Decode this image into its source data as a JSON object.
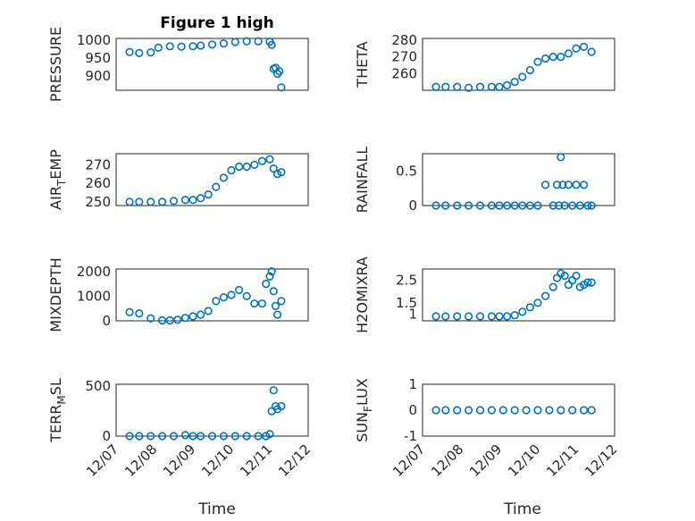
{
  "figure": {
    "title": "Figure 1 high"
  },
  "chart_data": [
    {
      "type": "scatter",
      "title": "Figure 1 high",
      "ylabel": "PRESSURE",
      "ylabel_sub": "",
      "ylabel_tail": "",
      "ylim": [
        860,
        1005
      ],
      "yticks": [
        900,
        950,
        1000
      ],
      "x": [
        7.35,
        7.6,
        7.9,
        8.1,
        8.4,
        8.7,
        9.0,
        9.2,
        9.5,
        9.8,
        10.1,
        10.4,
        10.7,
        11.0,
        11.05,
        11.1,
        11.15,
        11.2,
        11.25,
        11.3
      ],
      "y": [
        967,
        964,
        966,
        979,
        983,
        982,
        983,
        985,
        988,
        991,
        995,
        997,
        997,
        996,
        987,
        920,
        923,
        906,
        913,
        868
      ]
    },
    {
      "type": "scatter",
      "title": "",
      "ylabel": "THETA",
      "ylabel_sub": "",
      "ylabel_tail": "",
      "ylim": [
        250,
        281
      ],
      "yticks": [
        260,
        270,
        280
      ],
      "x": [
        7.35,
        7.6,
        7.9,
        8.2,
        8.5,
        8.8,
        9.0,
        9.2,
        9.4,
        9.6,
        9.8,
        10.0,
        10.2,
        10.4,
        10.6,
        10.8,
        11.0,
        11.2,
        11.4
      ],
      "y": [
        252,
        252,
        252,
        251.5,
        252,
        252,
        252,
        253,
        255,
        258,
        262,
        267,
        269,
        270,
        270,
        272,
        275,
        276,
        273
      ]
    },
    {
      "type": "scatter",
      "title": "",
      "ylabel": "AIR",
      "ylabel_sub": "T",
      "ylabel_tail": "EMP",
      "ylim": [
        248,
        276
      ],
      "yticks": [
        250,
        260,
        270
      ],
      "x": [
        7.35,
        7.6,
        7.9,
        8.2,
        8.5,
        8.8,
        9.0,
        9.2,
        9.4,
        9.6,
        9.8,
        10.0,
        10.2,
        10.4,
        10.6,
        10.8,
        11.0,
        11.1,
        11.2,
        11.3
      ],
      "y": [
        250,
        250,
        250,
        250,
        250.5,
        251,
        251,
        252,
        254,
        258,
        263,
        267,
        269,
        269,
        270,
        272,
        273,
        268,
        265,
        266
      ]
    },
    {
      "type": "scatter",
      "title": "",
      "ylabel": "RAINFALL",
      "ylabel_sub": "",
      "ylabel_tail": "",
      "ylim": [
        0,
        0.75
      ],
      "yticks": [
        0,
        0.5
      ],
      "x": [
        7.35,
        7.6,
        7.9,
        8.2,
        8.5,
        8.8,
        9.0,
        9.2,
        9.4,
        9.6,
        9.8,
        10.0,
        10.2,
        10.4,
        10.5,
        10.55,
        10.6,
        10.65,
        10.7,
        10.8,
        10.9,
        11.0,
        11.1,
        11.2,
        11.3,
        11.4
      ],
      "y": [
        0,
        0,
        0,
        0,
        0,
        0,
        0,
        0,
        0,
        0,
        0,
        0,
        0.3,
        0,
        0.3,
        0,
        0.7,
        0.3,
        0,
        0.3,
        0,
        0.3,
        0,
        0.3,
        0,
        0
      ]
    },
    {
      "type": "scatter",
      "title": "",
      "ylabel": "MIXDEPTH",
      "ylabel_sub": "",
      "ylabel_tail": "",
      "ylim": [
        0,
        2100
      ],
      "yticks": [
        0,
        1000,
        2000
      ],
      "x": [
        7.35,
        7.6,
        7.9,
        8.2,
        8.4,
        8.6,
        8.8,
        9.0,
        9.2,
        9.4,
        9.6,
        9.8,
        10.0,
        10.2,
        10.4,
        10.6,
        10.8,
        10.9,
        11.0,
        11.05,
        11.1,
        11.15,
        11.2,
        11.3
      ],
      "y": [
        350,
        300,
        100,
        20,
        20,
        40,
        120,
        180,
        250,
        400,
        800,
        950,
        1050,
        1250,
        1000,
        700,
        700,
        1500,
        1800,
        2000,
        1200,
        600,
        250,
        800
      ]
    },
    {
      "type": "scatter",
      "title": "",
      "ylabel": "H2OMIXRA",
      "ylabel_sub": "",
      "ylabel_tail": "",
      "ylim": [
        0.7,
        3.0
      ],
      "yticks": [
        1,
        1.5,
        2.5
      ],
      "x": [
        7.35,
        7.6,
        7.9,
        8.2,
        8.5,
        8.8,
        9.0,
        9.2,
        9.4,
        9.6,
        9.8,
        10.0,
        10.2,
        10.4,
        10.5,
        10.6,
        10.7,
        10.8,
        10.9,
        11.0,
        11.1,
        11.2,
        11.3,
        11.4
      ],
      "y": [
        0.9,
        0.9,
        0.9,
        0.9,
        0.9,
        0.9,
        0.9,
        0.9,
        0.95,
        1.1,
        1.3,
        1.5,
        1.8,
        2.2,
        2.6,
        2.8,
        2.7,
        2.3,
        2.5,
        2.7,
        2.2,
        2.3,
        2.4,
        2.4
      ]
    },
    {
      "type": "scatter",
      "title": "",
      "ylabel": "TERR",
      "ylabel_sub": "M",
      "ylabel_tail": "SL",
      "ylim": [
        0,
        520
      ],
      "yticks": [
        0,
        500
      ],
      "x": [
        7.35,
        7.6,
        7.9,
        8.2,
        8.5,
        8.8,
        9.0,
        9.2,
        9.5,
        9.8,
        10.1,
        10.4,
        10.7,
        10.9,
        11.0,
        11.05,
        11.1,
        11.15,
        11.2,
        11.3
      ],
      "y": [
        0,
        0,
        0,
        0,
        0,
        10,
        0,
        0,
        0,
        0,
        0,
        0,
        0,
        0,
        20,
        250,
        460,
        300,
        270,
        300
      ]
    },
    {
      "type": "scatter",
      "title": "",
      "ylabel": "SUN",
      "ylabel_sub": "F",
      "ylabel_tail": "LUX",
      "ylim": [
        -1,
        1
      ],
      "yticks": [
        -1,
        0,
        1
      ],
      "x": [
        7.35,
        7.6,
        7.9,
        8.2,
        8.5,
        8.8,
        9.1,
        9.4,
        9.7,
        10.0,
        10.3,
        10.6,
        10.9,
        11.2,
        11.4
      ],
      "y": [
        0,
        0,
        0,
        0,
        0,
        0,
        0,
        0,
        0,
        0,
        0,
        0,
        0,
        0,
        0
      ]
    }
  ],
  "x_axis": {
    "label": "Time",
    "range": [
      7,
      12
    ],
    "ticks": [
      7,
      8,
      9,
      10,
      11,
      12
    ],
    "tick_labels": [
      "12/07",
      "12/08",
      "12/09",
      "12/10",
      "12/11",
      "12/12"
    ]
  },
  "colors": {
    "marker": "#0072BD"
  }
}
